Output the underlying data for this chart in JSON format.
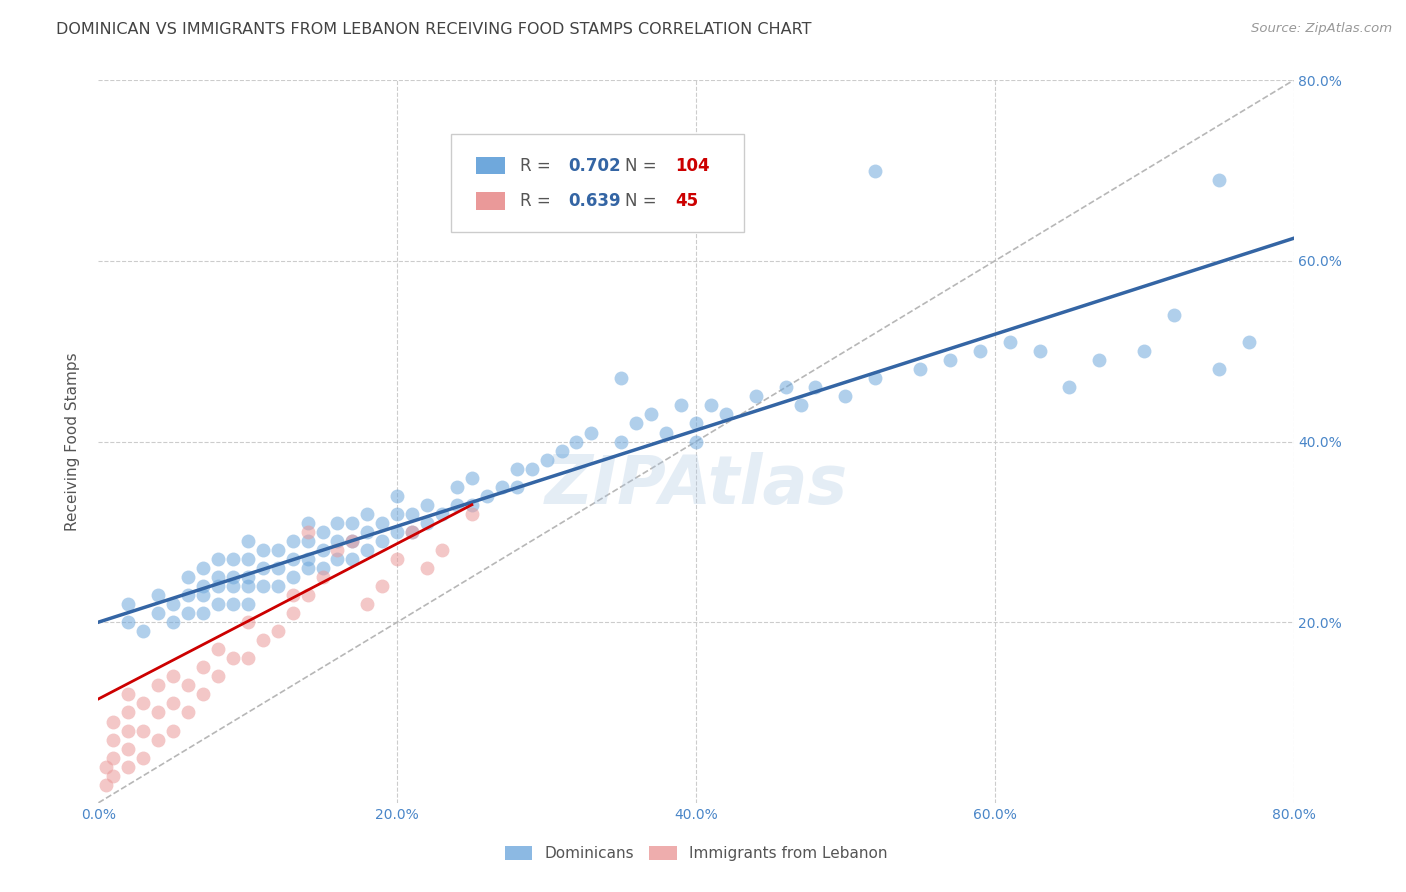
{
  "title": "DOMINICAN VS IMMIGRANTS FROM LEBANON RECEIVING FOOD STAMPS CORRELATION CHART",
  "source": "Source: ZipAtlas.com",
  "ylabel": "Receiving Food Stamps",
  "watermark": "ZIPAtlas",
  "xlim": [
    0.0,
    0.8
  ],
  "ylim": [
    0.0,
    0.8
  ],
  "xticks": [
    0.0,
    0.2,
    0.4,
    0.6,
    0.8
  ],
  "yticks": [
    0.2,
    0.4,
    0.6,
    0.8
  ],
  "xtick_labels": [
    "0.0%",
    "20.0%",
    "40.0%",
    "60.0%",
    "80.0%"
  ],
  "ytick_labels": [
    "20.0%",
    "40.0%",
    "60.0%",
    "80.0%"
  ],
  "blue_R": "0.702",
  "blue_N": "104",
  "pink_R": "0.639",
  "pink_N": "45",
  "blue_color": "#6fa8dc",
  "pink_color": "#ea9999",
  "blue_line_color": "#3465a4",
  "pink_line_color": "#cc0000",
  "diag_line_color": "#b7b7b7",
  "title_color": "#434343",
  "axis_color": "#4a86c8",
  "grid_color": "#cccccc",
  "blue_scatter_x": [
    0.02,
    0.02,
    0.03,
    0.04,
    0.04,
    0.05,
    0.05,
    0.06,
    0.06,
    0.06,
    0.07,
    0.07,
    0.07,
    0.07,
    0.08,
    0.08,
    0.08,
    0.08,
    0.09,
    0.09,
    0.09,
    0.09,
    0.1,
    0.1,
    0.1,
    0.1,
    0.1,
    0.11,
    0.11,
    0.11,
    0.12,
    0.12,
    0.12,
    0.13,
    0.13,
    0.13,
    0.14,
    0.14,
    0.14,
    0.14,
    0.15,
    0.15,
    0.15,
    0.16,
    0.16,
    0.16,
    0.17,
    0.17,
    0.17,
    0.18,
    0.18,
    0.18,
    0.19,
    0.19,
    0.2,
    0.2,
    0.2,
    0.21,
    0.21,
    0.22,
    0.22,
    0.23,
    0.24,
    0.24,
    0.25,
    0.25,
    0.26,
    0.27,
    0.28,
    0.28,
    0.29,
    0.3,
    0.31,
    0.32,
    0.33,
    0.35,
    0.36,
    0.37,
    0.38,
    0.39,
    0.4,
    0.41,
    0.42,
    0.44,
    0.46,
    0.47,
    0.48,
    0.5,
    0.52,
    0.55,
    0.57,
    0.59,
    0.61,
    0.63,
    0.65,
    0.67,
    0.7,
    0.72,
    0.75,
    0.77,
    0.35,
    0.4,
    0.52,
    0.75
  ],
  "blue_scatter_y": [
    0.2,
    0.22,
    0.19,
    0.21,
    0.23,
    0.2,
    0.22,
    0.21,
    0.23,
    0.25,
    0.21,
    0.23,
    0.24,
    0.26,
    0.22,
    0.24,
    0.25,
    0.27,
    0.22,
    0.24,
    0.25,
    0.27,
    0.22,
    0.24,
    0.25,
    0.27,
    0.29,
    0.24,
    0.26,
    0.28,
    0.24,
    0.26,
    0.28,
    0.25,
    0.27,
    0.29,
    0.26,
    0.27,
    0.29,
    0.31,
    0.26,
    0.28,
    0.3,
    0.27,
    0.29,
    0.31,
    0.27,
    0.29,
    0.31,
    0.28,
    0.3,
    0.32,
    0.29,
    0.31,
    0.3,
    0.32,
    0.34,
    0.3,
    0.32,
    0.31,
    0.33,
    0.32,
    0.33,
    0.35,
    0.33,
    0.36,
    0.34,
    0.35,
    0.35,
    0.37,
    0.37,
    0.38,
    0.39,
    0.4,
    0.41,
    0.4,
    0.42,
    0.43,
    0.41,
    0.44,
    0.42,
    0.44,
    0.43,
    0.45,
    0.46,
    0.44,
    0.46,
    0.45,
    0.47,
    0.48,
    0.49,
    0.5,
    0.51,
    0.5,
    0.46,
    0.49,
    0.5,
    0.54,
    0.48,
    0.51,
    0.47,
    0.4,
    0.7,
    0.69
  ],
  "pink_scatter_x": [
    0.005,
    0.005,
    0.01,
    0.01,
    0.01,
    0.01,
    0.02,
    0.02,
    0.02,
    0.02,
    0.02,
    0.03,
    0.03,
    0.03,
    0.04,
    0.04,
    0.04,
    0.05,
    0.05,
    0.05,
    0.06,
    0.06,
    0.07,
    0.07,
    0.08,
    0.08,
    0.09,
    0.1,
    0.1,
    0.11,
    0.12,
    0.13,
    0.13,
    0.14,
    0.14,
    0.15,
    0.16,
    0.17,
    0.18,
    0.19,
    0.2,
    0.21,
    0.22,
    0.23,
    0.25
  ],
  "pink_scatter_y": [
    0.02,
    0.04,
    0.03,
    0.05,
    0.07,
    0.09,
    0.04,
    0.06,
    0.08,
    0.1,
    0.12,
    0.05,
    0.08,
    0.11,
    0.07,
    0.1,
    0.13,
    0.08,
    0.11,
    0.14,
    0.1,
    0.13,
    0.12,
    0.15,
    0.14,
    0.17,
    0.16,
    0.16,
    0.2,
    0.18,
    0.19,
    0.21,
    0.23,
    0.23,
    0.3,
    0.25,
    0.28,
    0.29,
    0.22,
    0.24,
    0.27,
    0.3,
    0.26,
    0.28,
    0.32
  ],
  "blue_line_x": [
    0.0,
    0.8
  ],
  "blue_line_y": [
    0.2,
    0.625
  ],
  "pink_line_x": [
    0.0,
    0.25
  ],
  "pink_line_y": [
    0.115,
    0.33
  ],
  "diag_line_x": [
    0.0,
    0.8
  ],
  "diag_line_y": [
    0.0,
    0.8
  ],
  "marker_size": 100,
  "marker_alpha": 0.55,
  "title_fontsize": 11.5,
  "source_fontsize": 9.5,
  "tick_fontsize": 10,
  "ylabel_fontsize": 11,
  "legend_fontsize": 12,
  "watermark_fontsize": 48,
  "watermark_color": "#a8c4e0",
  "watermark_alpha": 0.3
}
